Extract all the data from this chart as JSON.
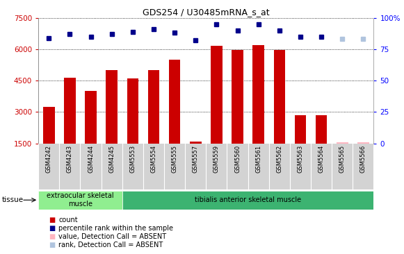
{
  "title": "GDS254 / U30485mRNA_s_at",
  "samples": [
    "GSM4242",
    "GSM4243",
    "GSM4244",
    "GSM4245",
    "GSM5553",
    "GSM5554",
    "GSM5555",
    "GSM5557",
    "GSM5559",
    "GSM5560",
    "GSM5561",
    "GSM5562",
    "GSM5563",
    "GSM5564",
    "GSM5565",
    "GSM5566"
  ],
  "bar_values": [
    3250,
    4650,
    4000,
    5000,
    4600,
    5000,
    5500,
    1600,
    6150,
    5950,
    6200,
    5950,
    2850,
    2850,
    null,
    null
  ],
  "bar_absent": [
    false,
    false,
    false,
    false,
    false,
    false,
    false,
    false,
    false,
    false,
    false,
    false,
    false,
    false,
    true,
    true
  ],
  "bar_absent_values": [
    null,
    null,
    null,
    null,
    null,
    null,
    null,
    null,
    null,
    null,
    null,
    null,
    null,
    null,
    1550,
    1550
  ],
  "percentile_values": [
    84,
    87,
    85,
    87,
    89,
    91,
    88,
    82,
    95,
    90,
    95,
    90,
    85,
    85,
    null,
    null
  ],
  "percentile_absent": [
    false,
    false,
    false,
    false,
    false,
    false,
    false,
    false,
    false,
    false,
    false,
    false,
    false,
    false,
    true,
    true
  ],
  "percentile_absent_values": [
    null,
    null,
    null,
    null,
    null,
    null,
    null,
    null,
    null,
    null,
    null,
    null,
    null,
    null,
    83,
    83
  ],
  "ylim_left": [
    1500,
    7500
  ],
  "ylim_right": [
    0,
    100
  ],
  "yticks_left": [
    1500,
    3000,
    4500,
    6000,
    7500
  ],
  "yticks_right": [
    0,
    25,
    50,
    75,
    100
  ],
  "tissue_groups": [
    {
      "label": "extraocular skeletal\nmuscle",
      "start": 0,
      "end": 4,
      "color": "#90EE90"
    },
    {
      "label": "tibialis anterior skeletal muscle",
      "start": 4,
      "end": 16,
      "color": "#3CB371"
    }
  ],
  "bar_color": "#CC0000",
  "bar_absent_color": "#FFB6C1",
  "percentile_color": "#00008B",
  "percentile_absent_color": "#B0C4DE",
  "plot_bg": "#FFFFFF",
  "grid_color": "#000000",
  "ytick_left_color": "#CC0000",
  "ytick_right_color": "#0000FF",
  "xtick_area_color": "#D3D3D3",
  "tissue_label": "tissue",
  "legend_items": [
    {
      "label": "count",
      "color": "#CC0000"
    },
    {
      "label": "percentile rank within the sample",
      "color": "#00008B"
    },
    {
      "label": "value, Detection Call = ABSENT",
      "color": "#FFB6C1"
    },
    {
      "label": "rank, Detection Call = ABSENT",
      "color": "#B0C4DE"
    }
  ]
}
